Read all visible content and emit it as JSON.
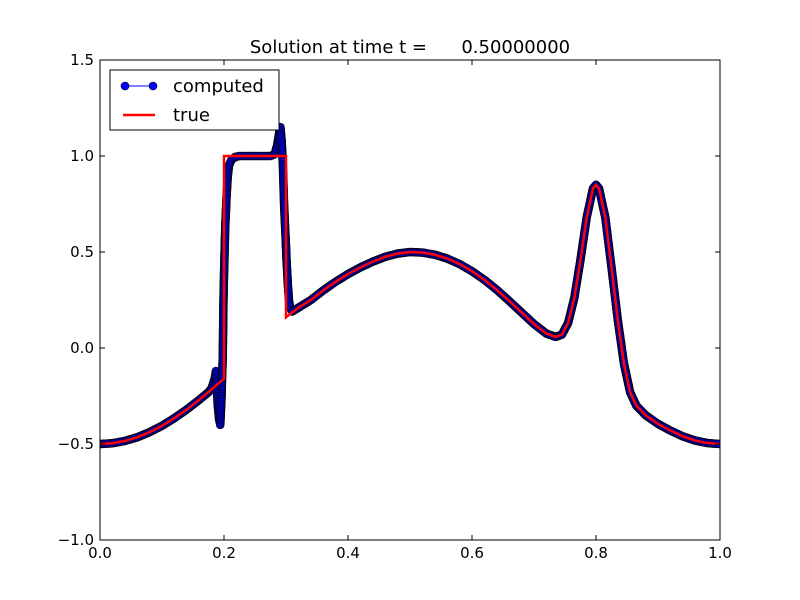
{
  "chart_data": {
    "type": "line",
    "title": "Solution at time t =      0.50000000",
    "xlabel": "",
    "ylabel": "",
    "xlim": [
      0.0,
      1.0
    ],
    "ylim": [
      -1.0,
      1.5
    ],
    "x_ticks": [
      "0.0",
      "0.2",
      "0.4",
      "0.6",
      "0.8",
      "1.0"
    ],
    "y_ticks": [
      "1.5",
      "1.0",
      "0.5",
      "0.0",
      "−0.5",
      "−1.0"
    ],
    "grid": false,
    "legend_position": "top-left",
    "series": [
      {
        "name": "computed",
        "style": "line-with-circle-markers",
        "color": "#0000ff",
        "marker_edge": "#000000",
        "points": [
          [
            0.0,
            -0.5
          ],
          [
            0.02,
            -0.496
          ],
          [
            0.04,
            -0.484
          ],
          [
            0.06,
            -0.465
          ],
          [
            0.08,
            -0.438
          ],
          [
            0.1,
            -0.405
          ],
          [
            0.12,
            -0.365
          ],
          [
            0.14,
            -0.32
          ],
          [
            0.16,
            -0.27
          ],
          [
            0.175,
            -0.23
          ],
          [
            0.18,
            -0.21
          ],
          [
            0.185,
            -0.16
          ],
          [
            0.187,
            -0.12
          ],
          [
            0.19,
            -0.3
          ],
          [
            0.192,
            -0.37
          ],
          [
            0.194,
            -0.4
          ],
          [
            0.196,
            -0.26
          ],
          [
            0.197,
            -0.14
          ],
          [
            0.198,
            -0.05
          ],
          [
            0.199,
            0.22
          ],
          [
            0.2,
            0.38
          ],
          [
            0.202,
            0.63
          ],
          [
            0.204,
            0.78
          ],
          [
            0.206,
            0.89
          ],
          [
            0.208,
            0.95
          ],
          [
            0.212,
            0.98
          ],
          [
            0.218,
            0.995
          ],
          [
            0.225,
            1.0
          ],
          [
            0.235,
            1.0
          ],
          [
            0.245,
            1.0
          ],
          [
            0.255,
            1.0
          ],
          [
            0.265,
            1.0
          ],
          [
            0.275,
            1.0
          ],
          [
            0.282,
            1.01
          ],
          [
            0.286,
            1.06
          ],
          [
            0.289,
            1.12
          ],
          [
            0.291,
            1.15
          ],
          [
            0.293,
            1.08
          ],
          [
            0.295,
            0.95
          ],
          [
            0.297,
            0.74
          ],
          [
            0.299,
            0.6
          ],
          [
            0.301,
            0.45
          ],
          [
            0.303,
            0.33
          ],
          [
            0.305,
            0.24
          ],
          [
            0.307,
            0.21
          ],
          [
            0.31,
            0.19
          ],
          [
            0.32,
            0.21
          ],
          [
            0.34,
            0.25
          ],
          [
            0.36,
            0.3
          ],
          [
            0.38,
            0.345
          ],
          [
            0.4,
            0.385
          ],
          [
            0.42,
            0.42
          ],
          [
            0.44,
            0.45
          ],
          [
            0.46,
            0.475
          ],
          [
            0.48,
            0.492
          ],
          [
            0.5,
            0.5
          ],
          [
            0.52,
            0.497
          ],
          [
            0.54,
            0.486
          ],
          [
            0.56,
            0.466
          ],
          [
            0.58,
            0.437
          ],
          [
            0.6,
            0.4
          ],
          [
            0.62,
            0.355
          ],
          [
            0.64,
            0.303
          ],
          [
            0.66,
            0.245
          ],
          [
            0.68,
            0.185
          ],
          [
            0.7,
            0.125
          ],
          [
            0.72,
            0.075
          ],
          [
            0.735,
            0.058
          ],
          [
            0.745,
            0.07
          ],
          [
            0.755,
            0.13
          ],
          [
            0.765,
            0.26
          ],
          [
            0.775,
            0.46
          ],
          [
            0.785,
            0.68
          ],
          [
            0.795,
            0.83
          ],
          [
            0.8,
            0.85
          ],
          [
            0.805,
            0.83
          ],
          [
            0.815,
            0.68
          ],
          [
            0.825,
            0.42
          ],
          [
            0.835,
            0.15
          ],
          [
            0.845,
            -0.08
          ],
          [
            0.855,
            -0.23
          ],
          [
            0.865,
            -0.3
          ],
          [
            0.88,
            -0.35
          ],
          [
            0.9,
            -0.395
          ],
          [
            0.92,
            -0.43
          ],
          [
            0.94,
            -0.46
          ],
          [
            0.96,
            -0.482
          ],
          [
            0.98,
            -0.495
          ],
          [
            1.0,
            -0.5
          ]
        ]
      },
      {
        "name": "true",
        "style": "line",
        "color": "#ff0000",
        "points": [
          [
            0.0,
            -0.5
          ],
          [
            0.02,
            -0.496
          ],
          [
            0.04,
            -0.484
          ],
          [
            0.06,
            -0.465
          ],
          [
            0.08,
            -0.438
          ],
          [
            0.1,
            -0.405
          ],
          [
            0.12,
            -0.365
          ],
          [
            0.14,
            -0.32
          ],
          [
            0.16,
            -0.27
          ],
          [
            0.18,
            -0.215
          ],
          [
            0.2,
            -0.16
          ],
          [
            0.2,
            1.0
          ],
          [
            0.3,
            1.0
          ],
          [
            0.3,
            0.16
          ],
          [
            0.32,
            0.21
          ],
          [
            0.34,
            0.25
          ],
          [
            0.36,
            0.3
          ],
          [
            0.38,
            0.345
          ],
          [
            0.4,
            0.385
          ],
          [
            0.42,
            0.42
          ],
          [
            0.44,
            0.45
          ],
          [
            0.46,
            0.475
          ],
          [
            0.48,
            0.492
          ],
          [
            0.5,
            0.5
          ],
          [
            0.52,
            0.497
          ],
          [
            0.54,
            0.486
          ],
          [
            0.56,
            0.466
          ],
          [
            0.58,
            0.437
          ],
          [
            0.6,
            0.4
          ],
          [
            0.62,
            0.355
          ],
          [
            0.64,
            0.303
          ],
          [
            0.66,
            0.245
          ],
          [
            0.68,
            0.185
          ],
          [
            0.7,
            0.125
          ],
          [
            0.72,
            0.075
          ],
          [
            0.735,
            0.058
          ],
          [
            0.745,
            0.07
          ],
          [
            0.755,
            0.13
          ],
          [
            0.765,
            0.26
          ],
          [
            0.775,
            0.46
          ],
          [
            0.785,
            0.68
          ],
          [
            0.795,
            0.83
          ],
          [
            0.8,
            0.85
          ],
          [
            0.805,
            0.83
          ],
          [
            0.815,
            0.68
          ],
          [
            0.825,
            0.42
          ],
          [
            0.835,
            0.15
          ],
          [
            0.845,
            -0.08
          ],
          [
            0.855,
            -0.23
          ],
          [
            0.865,
            -0.3
          ],
          [
            0.88,
            -0.35
          ],
          [
            0.9,
            -0.395
          ],
          [
            0.92,
            -0.43
          ],
          [
            0.94,
            -0.46
          ],
          [
            0.96,
            -0.482
          ],
          [
            0.98,
            -0.495
          ],
          [
            1.0,
            -0.5
          ]
        ]
      }
    ]
  }
}
